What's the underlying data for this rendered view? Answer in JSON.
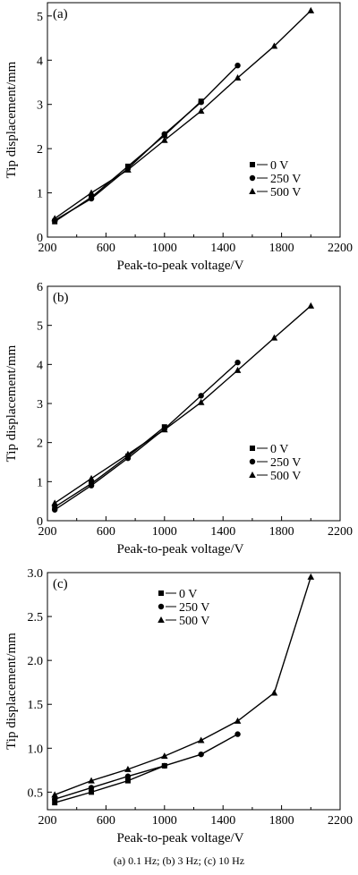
{
  "caption": "(a) 0.1 Hz; (b) 3 Hz; (c) 10 Hz",
  "chart_data": [
    {
      "type": "line",
      "panel_label": "(a)",
      "xlabel": "Peak-to-peak voltage/V",
      "ylabel": "Tip displacement/mm",
      "xlim": [
        200,
        2200
      ],
      "ylim": [
        0,
        5.3
      ],
      "xticks": [
        "200",
        "600",
        "1000",
        "1400",
        "1800",
        "2200"
      ],
      "yticks": [
        "0",
        "1",
        "2",
        "3",
        "4",
        "5"
      ],
      "legend_position": "right",
      "series": [
        {
          "name": "0 V",
          "marker": "square",
          "x": [
            250,
            500,
            750,
            1000,
            1250
          ],
          "y": [
            0.35,
            0.9,
            1.6,
            2.3,
            3.07
          ]
        },
        {
          "name": "250 V",
          "marker": "circle",
          "x": [
            250,
            500,
            750,
            1000,
            1250,
            1500
          ],
          "y": [
            0.38,
            0.87,
            1.55,
            2.33,
            3.05,
            3.88
          ]
        },
        {
          "name": "500 V",
          "marker": "triangle",
          "x": [
            250,
            500,
            750,
            1000,
            1250,
            1500,
            1750,
            2000
          ],
          "y": [
            0.42,
            1.0,
            1.52,
            2.19,
            2.85,
            3.6,
            4.32,
            5.12
          ]
        }
      ]
    },
    {
      "type": "line",
      "panel_label": "(b)",
      "xlabel": "Peak-to-peak voltage/V",
      "ylabel": "Tip displacement/mm",
      "xlim": [
        200,
        2200
      ],
      "ylim": [
        0,
        6
      ],
      "xticks": [
        "200",
        "600",
        "1000",
        "1400",
        "1800",
        "2200"
      ],
      "yticks": [
        "0",
        "1",
        "2",
        "3",
        "4",
        "5",
        "6"
      ],
      "legend_position": "right",
      "series": [
        {
          "name": "0 V",
          "marker": "square",
          "x": [
            250,
            500,
            750,
            1000
          ],
          "y": [
            0.35,
            0.95,
            1.65,
            2.4
          ]
        },
        {
          "name": "250 V",
          "marker": "circle",
          "x": [
            250,
            500,
            750,
            1000,
            1250,
            1500
          ],
          "y": [
            0.28,
            0.9,
            1.6,
            2.35,
            3.2,
            4.05
          ]
        },
        {
          "name": "500 V",
          "marker": "triangle",
          "x": [
            250,
            500,
            750,
            1000,
            1250,
            1500,
            1750,
            2000
          ],
          "y": [
            0.45,
            1.08,
            1.7,
            2.33,
            3.03,
            3.85,
            4.68,
            5.5
          ]
        }
      ]
    },
    {
      "type": "line",
      "panel_label": "(c)",
      "xlabel": "Peak-to-peak voltage/V",
      "ylabel": "Tip displacement/mm",
      "xlim": [
        200,
        2200
      ],
      "ylim": [
        0.3,
        3.0
      ],
      "xticks": [
        "200",
        "600",
        "1000",
        "1400",
        "1800",
        "2200"
      ],
      "yticks": [
        "0.5",
        "1.0",
        "1.5",
        "2.0",
        "2.5",
        "3.0"
      ],
      "legend_position": "upper-left",
      "series": [
        {
          "name": "0 V",
          "marker": "square",
          "x": [
            250,
            500,
            750,
            1000
          ],
          "y": [
            0.38,
            0.5,
            0.63,
            0.8
          ]
        },
        {
          "name": "250 V",
          "marker": "circle",
          "x": [
            250,
            500,
            750,
            1000,
            1250,
            1500
          ],
          "y": [
            0.42,
            0.55,
            0.68,
            0.8,
            0.93,
            1.16
          ]
        },
        {
          "name": "500 V",
          "marker": "triangle",
          "x": [
            250,
            500,
            750,
            1000,
            1250,
            1500,
            1750,
            2000
          ],
          "y": [
            0.47,
            0.63,
            0.76,
            0.91,
            1.09,
            1.31,
            1.63,
            2.95
          ]
        }
      ]
    }
  ]
}
